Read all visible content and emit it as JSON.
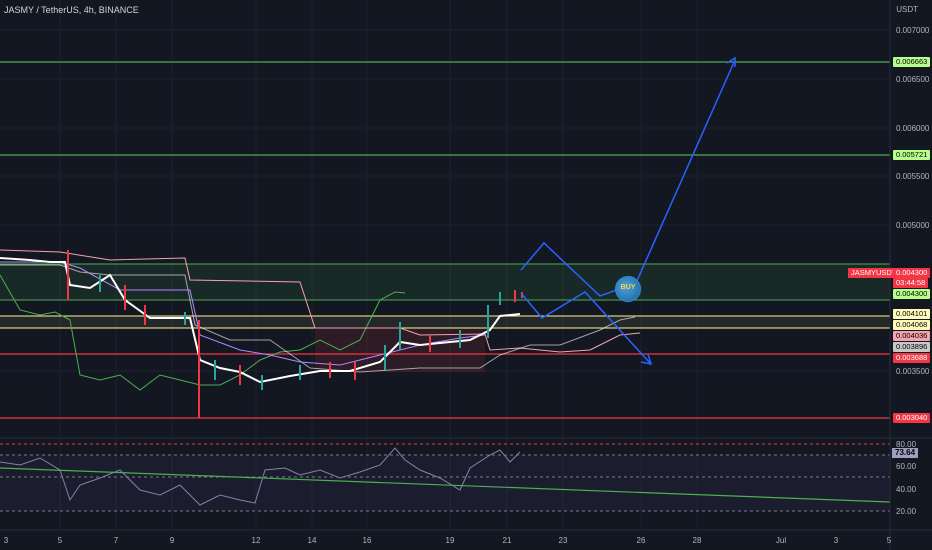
{
  "header": {
    "symbol": "JASMY / TetherUS, 4h, BINANCE",
    "currency": "USDT"
  },
  "colors": {
    "background": "#131722",
    "green_level": "#4caf50",
    "red_level": "#f23645",
    "yellow_level": "#fff48f",
    "arrow": "#2962ff",
    "price_line": "#ffffff",
    "rsi_line": "#8a7fa8",
    "trend_line": "#4caf50"
  },
  "price_axis": {
    "ticks": [
      "0.007000",
      "0.006500",
      "0.006000",
      "0.005500",
      "0.005000",
      "0.003500"
    ]
  },
  "price_tags": {
    "l1": "0.006663",
    "l2": "0.005721",
    "symbol": "JASMYUSDT",
    "current": "0.004300",
    "countdown": "03:44:58",
    "l3": "0.004300",
    "l4": "0.004101",
    "l5": "0.004068",
    "l6": "0.004036",
    "l7": "0.003896",
    "l8": "0.003688",
    "l9": "0.003040"
  },
  "rsi": {
    "value": "73.64",
    "ticks": [
      "80.00",
      "60.00",
      "40.00",
      "20.00"
    ]
  },
  "time_axis": [
    "3",
    "5",
    "7",
    "9",
    "12",
    "14",
    "16",
    "19",
    "21",
    "23",
    "26",
    "28",
    "Jul",
    "3",
    "5"
  ],
  "buy_icon": {
    "label": "BUY"
  },
  "chart_data": {
    "type": "line",
    "title": "JASMY / TetherUS, 4h, BINANCE",
    "xlabel": "",
    "ylabel": "USDT",
    "ylim": [
      0.0029,
      0.0072
    ],
    "levels": [
      0.006663,
      0.005721,
      0.0043,
      0.004101,
      0.004068,
      0.004036,
      0.003896,
      0.003688,
      0.00304
    ],
    "rsi_value": 73.64
  }
}
